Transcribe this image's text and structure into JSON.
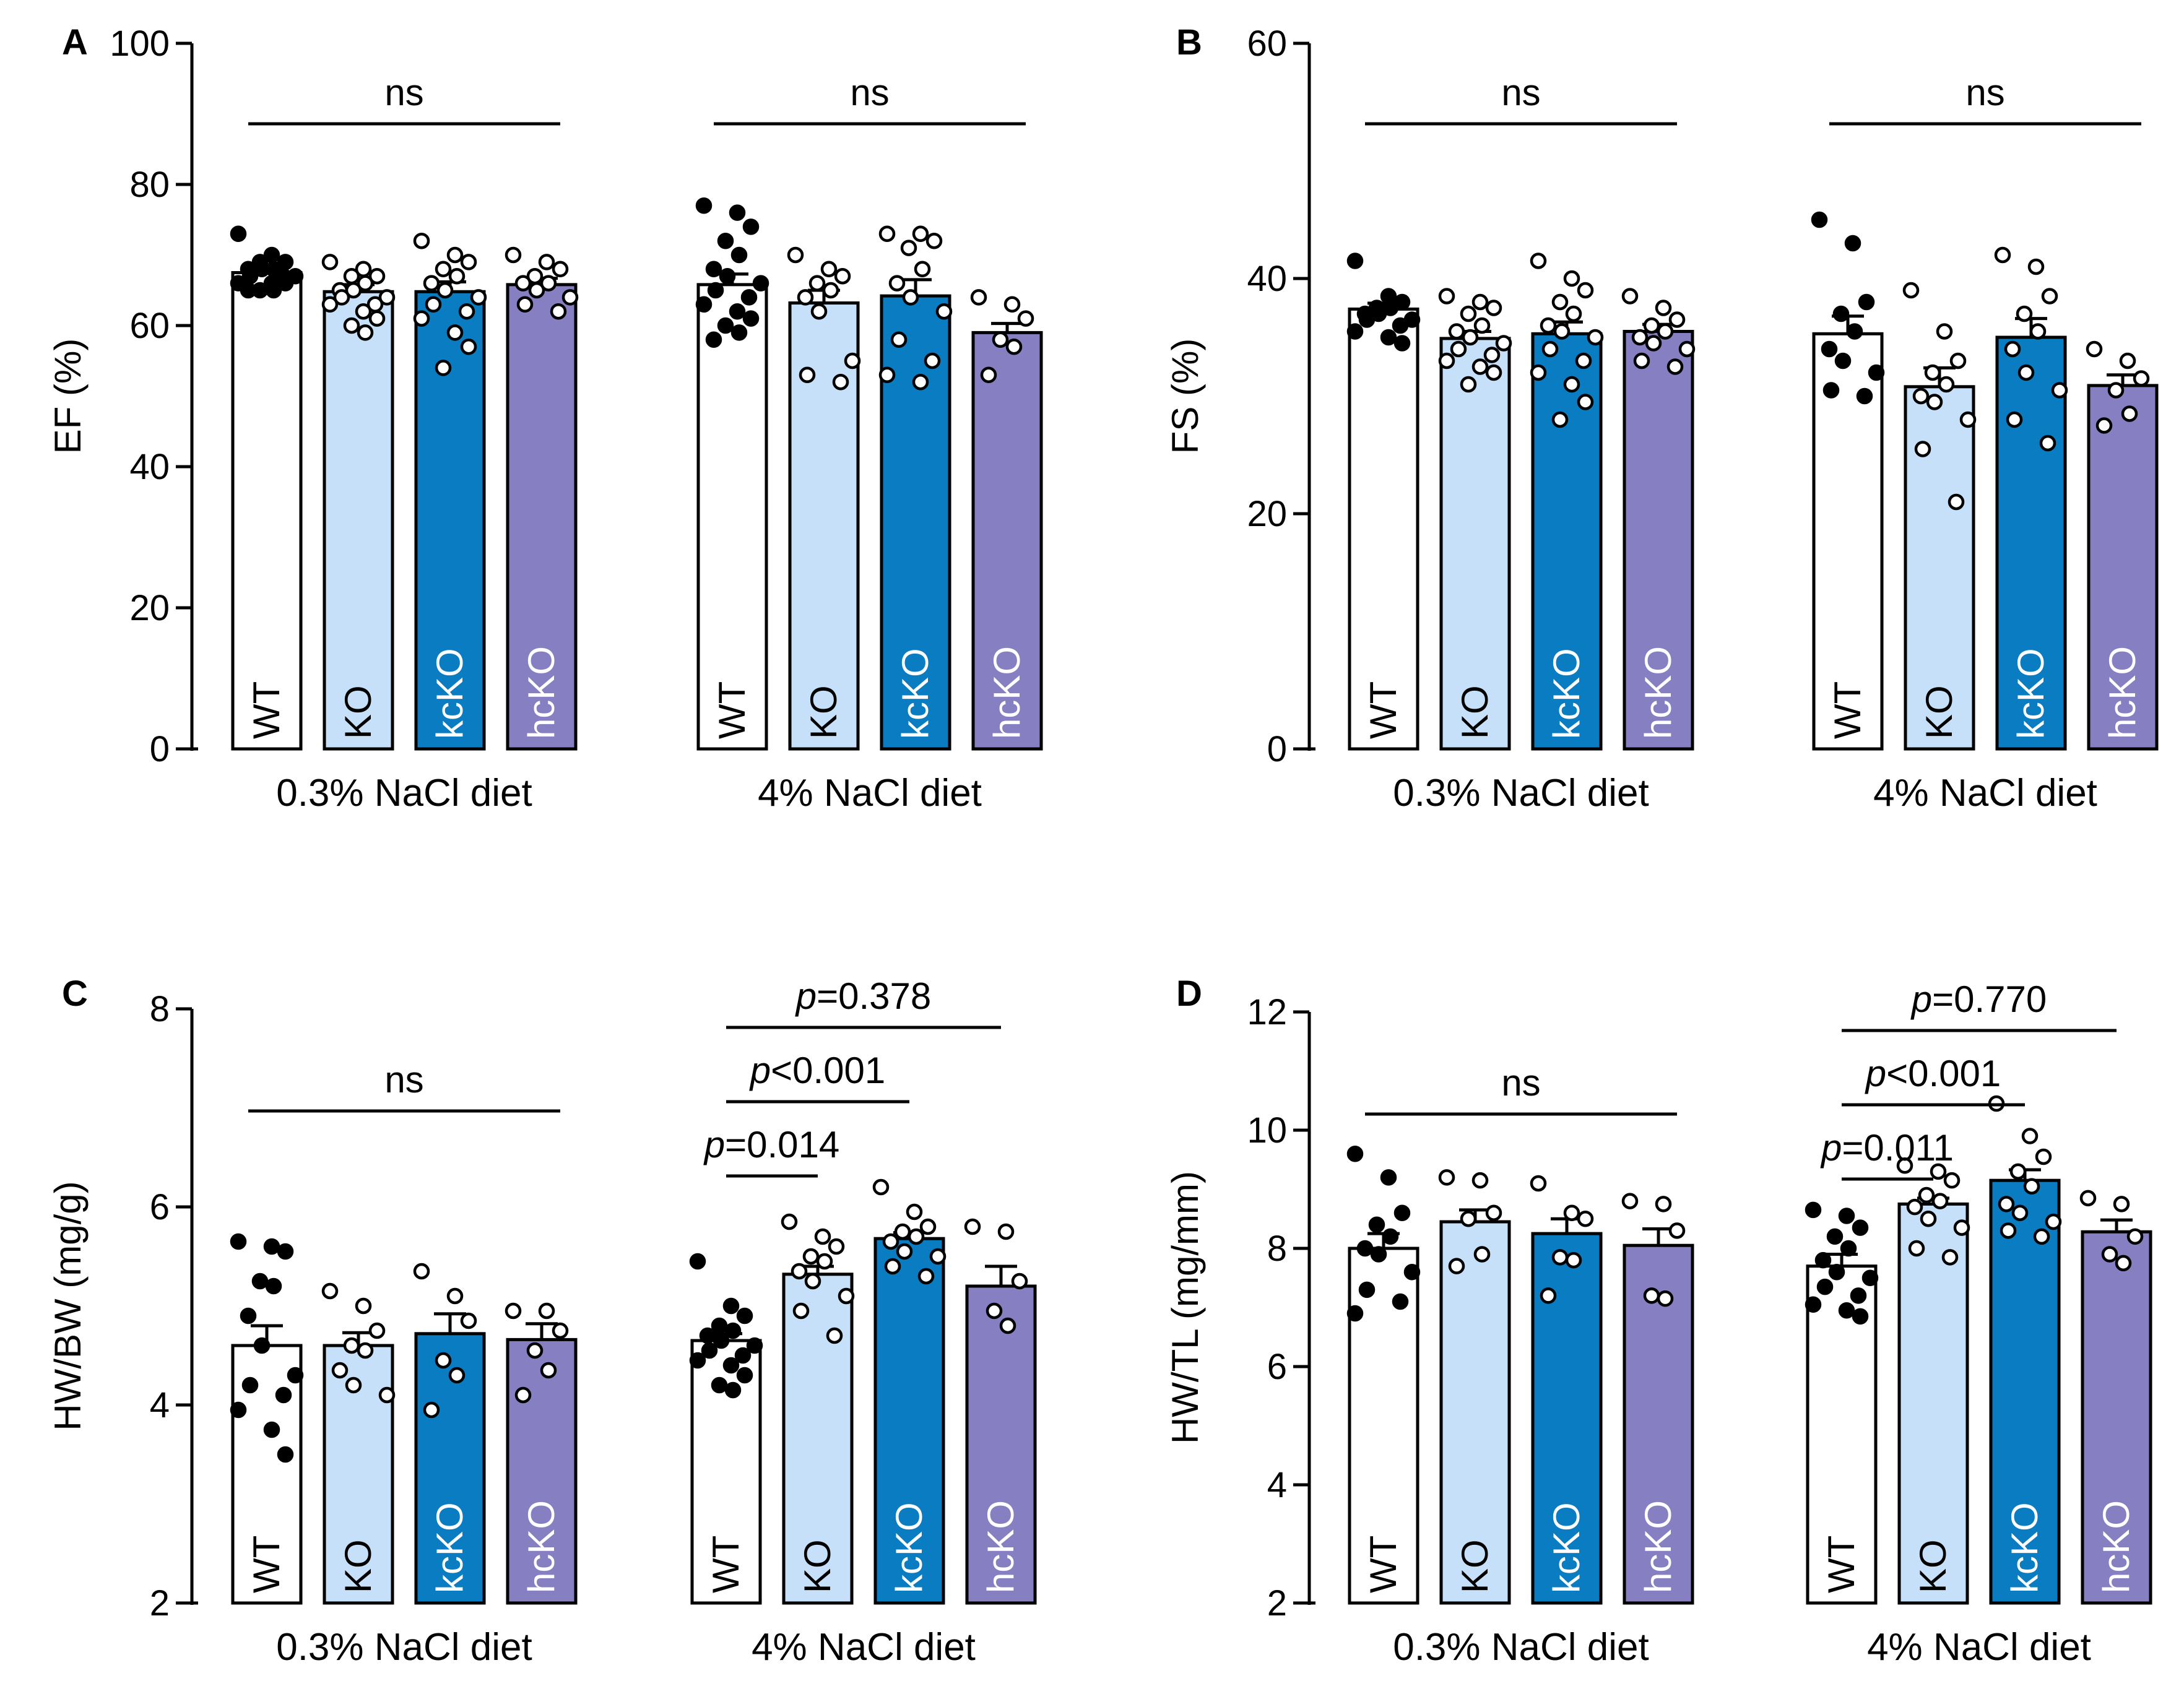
{
  "figure": {
    "group_labels": [
      "0.3% NaCl diet",
      "4% NaCl diet"
    ],
    "genotypes": [
      "WT",
      "KO",
      "kcKO",
      "hcKO"
    ],
    "colors": {
      "WT": "#ffffff",
      "KO": "#c5e0f8",
      "kcKO": "#0a7cc2",
      "hcKO": "#8680c3"
    },
    "label_colors": {
      "WT": "#000000",
      "KO": "#000000",
      "kcKO": "#ffffff",
      "hcKO": "#ffffff"
    },
    "point_fill": {
      "WT": "#000000",
      "KO": "#ffffff",
      "kcKO": "#ffffff",
      "hcKO": "#ffffff"
    }
  },
  "chart_data": [
    {
      "panel_label": "A",
      "type": "bar",
      "ylabel": "EF (%)",
      "ylim": [
        0,
        100
      ],
      "yticks": [
        "0",
        "20",
        "40",
        "60",
        "80",
        "100"
      ],
      "groups": [
        {
          "label": "0.3% NaCl diet",
          "bars": [
            {
              "genotype": "WT",
              "mean": 67.5,
              "sem": 0.8,
              "points": [
                73,
                70,
                69,
                69,
                68,
                68,
                68,
                67,
                67,
                67,
                66,
                66,
                66,
                65,
                65,
                65
              ]
            },
            {
              "genotype": "KO",
              "mean": 64.8,
              "sem": 1.0,
              "points": [
                69,
                68,
                67,
                67,
                66,
                65,
                65,
                64,
                64,
                63,
                63,
                62,
                61,
                60,
                59
              ]
            },
            {
              "genotype": "kcKO",
              "mean": 64.8,
              "sem": 1.4,
              "points": [
                72,
                70,
                69,
                68,
                67,
                66,
                65,
                64,
                63,
                62,
                61,
                59,
                57,
                54
              ]
            },
            {
              "genotype": "hcKO",
              "mean": 65.8,
              "sem": 0.9,
              "points": [
                70,
                69,
                68,
                67,
                66,
                66,
                65,
                64,
                63,
                62
              ]
            }
          ],
          "annotation": {
            "text": "ns",
            "italic_p": false,
            "from": 0,
            "to": 3
          }
        },
        {
          "label": "4% NaCl diet",
          "bars": [
            {
              "genotype": "WT",
              "mean": 65.8,
              "sem": 1.5,
              "points": [
                77,
                76,
                74,
                72,
                70,
                68,
                67,
                66,
                65,
                64,
                63,
                62,
                61,
                60,
                59,
                58
              ]
            },
            {
              "genotype": "KO",
              "mean": 63.2,
              "sem": 1.8,
              "points": [
                70,
                68,
                67,
                66,
                65,
                64,
                62,
                55,
                53,
                52
              ]
            },
            {
              "genotype": "kcKO",
              "mean": 64.2,
              "sem": 2.3,
              "points": [
                73,
                73,
                72,
                71,
                68,
                66,
                64,
                62,
                58,
                55,
                53,
                52
              ]
            },
            {
              "genotype": "hcKO",
              "mean": 59.0,
              "sem": 1.3,
              "points": [
                64,
                63,
                61,
                58,
                57,
                53
              ]
            }
          ],
          "annotation": {
            "text": "ns",
            "italic_p": false,
            "from": 0,
            "to": 3
          }
        }
      ]
    },
    {
      "panel_label": "B",
      "type": "bar",
      "ylabel": "FS (%)",
      "ylim": [
        0,
        60
      ],
      "yticks": [
        "0",
        "20",
        "40",
        "60"
      ],
      "groups": [
        {
          "label": "0.3% NaCl diet",
          "bars": [
            {
              "genotype": "WT",
              "mean": 37.4,
              "sem": 0.5,
              "points": [
                41.5,
                38.5,
                38,
                37.5,
                37.5,
                37,
                37,
                36.5,
                36.5,
                36,
                35.5,
                35,
                34.5
              ]
            },
            {
              "genotype": "KO",
              "mean": 34.9,
              "sem": 0.6,
              "points": [
                38.5,
                38,
                37.5,
                37,
                36,
                35.5,
                35,
                34.5,
                34,
                33.5,
                33,
                32.5,
                32,
                31
              ]
            },
            {
              "genotype": "kcKO",
              "mean": 35.3,
              "sem": 1.0,
              "points": [
                41.5,
                40,
                39,
                38,
                37,
                36,
                35.5,
                35,
                34,
                33,
                32,
                31,
                29.5,
                28
              ]
            },
            {
              "genotype": "hcKO",
              "mean": 35.5,
              "sem": 0.6,
              "points": [
                38.5,
                37.5,
                36.5,
                36,
                35.5,
                35,
                34.5,
                34,
                33,
                32.5
              ]
            }
          ],
          "annotation": {
            "text": "ns",
            "italic_p": false,
            "from": 0,
            "to": 3
          }
        },
        {
          "label": "4% NaCl diet",
          "bars": [
            {
              "genotype": "WT",
              "mean": 35.3,
              "sem": 1.5,
              "points": [
                45,
                43,
                38,
                37,
                35.5,
                34,
                33,
                32,
                30.5,
                30
              ]
            },
            {
              "genotype": "KO",
              "mean": 30.8,
              "sem": 1.6,
              "points": [
                39,
                35.5,
                33,
                32,
                31,
                30,
                29.5,
                28,
                25.5,
                21
              ]
            },
            {
              "genotype": "kcKO",
              "mean": 35.0,
              "sem": 1.6,
              "points": [
                42,
                41,
                38.5,
                37,
                35.5,
                34,
                32,
                30.5,
                28,
                26
              ]
            },
            {
              "genotype": "hcKO",
              "mean": 30.9,
              "sem": 0.9,
              "points": [
                34,
                33,
                31.5,
                30.5,
                28.5,
                27.5
              ]
            }
          ],
          "annotation": {
            "text": "ns",
            "italic_p": false,
            "from": 0,
            "to": 3
          }
        }
      ]
    },
    {
      "panel_label": "C",
      "type": "bar",
      "ylabel": "HW/BW (mg/g)",
      "ylim": [
        2,
        8
      ],
      "yticks": [
        "2",
        "4",
        "6",
        "8"
      ],
      "groups": [
        {
          "label": "0.3% NaCl diet",
          "bars": [
            {
              "genotype": "WT",
              "mean": 4.6,
              "sem": 0.2,
              "points": [
                5.65,
                5.6,
                5.55,
                5.25,
                5.2,
                4.9,
                4.6,
                4.3,
                4.2,
                4.1,
                3.95,
                3.75,
                3.5
              ]
            },
            {
              "genotype": "KO",
              "mean": 4.6,
              "sem": 0.13,
              "points": [
                5.15,
                5.0,
                4.75,
                4.6,
                4.55,
                4.35,
                4.2,
                4.1
              ]
            },
            {
              "genotype": "kcKO",
              "mean": 4.72,
              "sem": 0.2,
              "points": [
                5.35,
                5.1,
                4.85,
                4.45,
                4.3,
                3.95
              ]
            },
            {
              "genotype": "hcKO",
              "mean": 4.66,
              "sem": 0.16,
              "points": [
                4.95,
                4.95,
                4.75,
                4.55,
                4.35,
                4.1
              ]
            }
          ],
          "annotation": {
            "text": "ns",
            "italic_p": false,
            "from": 0,
            "to": 3
          }
        },
        {
          "label": "4% NaCl diet",
          "bars": [
            {
              "genotype": "WT",
              "mean": 4.65,
              "sem": 0.07,
              "points": [
                5.45,
                5.0,
                4.9,
                4.8,
                4.75,
                4.7,
                4.65,
                4.6,
                4.55,
                4.5,
                4.45,
                4.4,
                4.3,
                4.2,
                4.15
              ]
            },
            {
              "genotype": "KO",
              "mean": 5.32,
              "sem": 0.08,
              "points": [
                5.85,
                5.7,
                5.6,
                5.5,
                5.45,
                5.35,
                5.25,
                5.1,
                4.95,
                4.7
              ]
            },
            {
              "genotype": "kcKO",
              "mean": 5.68,
              "sem": 0.06,
              "points": [
                6.2,
                5.95,
                5.8,
                5.75,
                5.7,
                5.65,
                5.55,
                5.5,
                5.4,
                5.3
              ]
            },
            {
              "genotype": "hcKO",
              "mean": 5.2,
              "sem": 0.2,
              "points": [
                5.8,
                5.75,
                5.25,
                4.95,
                4.8
              ]
            }
          ],
          "annotations": [
            {
              "text": "=0.014",
              "italic_p": true,
              "from": 0,
              "to": 1
            },
            {
              "text": "<0.001",
              "italic_p": true,
              "from": 0,
              "to": 2
            },
            {
              "text": "=0.378",
              "italic_p": true,
              "from": 0,
              "to": 3
            }
          ]
        }
      ]
    },
    {
      "panel_label": "D",
      "type": "bar",
      "ylabel": "HW/TL (mg/mm)",
      "ylim": [
        2,
        12
      ],
      "yticks": [
        "2",
        "4",
        "6",
        "8",
        "10",
        "12"
      ],
      "groups": [
        {
          "label": "0.3% NaCl diet",
          "bars": [
            {
              "genotype": "WT",
              "mean": 8.0,
              "sem": 0.25,
              "points": [
                9.6,
                9.2,
                8.6,
                8.4,
                8.2,
                8.0,
                7.9,
                7.6,
                7.3,
                7.1,
                6.9
              ]
            },
            {
              "genotype": "KO",
              "mean": 8.45,
              "sem": 0.2,
              "points": [
                9.2,
                9.15,
                8.6,
                8.5,
                7.9,
                7.7
              ]
            },
            {
              "genotype": "kcKO",
              "mean": 8.25,
              "sem": 0.25,
              "points": [
                9.1,
                8.6,
                8.5,
                7.85,
                7.8,
                7.2
              ]
            },
            {
              "genotype": "hcKO",
              "mean": 8.05,
              "sem": 0.28,
              "points": [
                8.8,
                8.75,
                8.3,
                7.2,
                7.15
              ]
            }
          ],
          "annotation": {
            "text": "ns",
            "italic_p": false,
            "from": 0,
            "to": 3
          }
        },
        {
          "label": "4% NaCl diet",
          "bars": [
            {
              "genotype": "WT",
              "mean": 7.7,
              "sem": 0.2,
              "points": [
                8.65,
                8.55,
                8.35,
                8.2,
                8.0,
                7.8,
                7.6,
                7.5,
                7.35,
                7.2,
                7.05,
                6.95,
                6.85
              ]
            },
            {
              "genotype": "KO",
              "mean": 8.75,
              "sem": 0.1,
              "points": [
                9.4,
                9.3,
                9.15,
                8.9,
                8.8,
                8.7,
                8.5,
                8.35,
                8.0,
                7.85
              ]
            },
            {
              "genotype": "kcKO",
              "mean": 9.15,
              "sem": 0.18,
              "points": [
                10.45,
                9.9,
                9.55,
                9.3,
                9.05,
                8.75,
                8.6,
                8.45,
                8.3,
                8.2
              ]
            },
            {
              "genotype": "hcKO",
              "mean": 8.28,
              "sem": 0.2,
              "points": [
                8.85,
                8.75,
                8.2,
                7.9,
                7.75
              ]
            }
          ],
          "annotations": [
            {
              "text": "=0.011",
              "italic_p": true,
              "from": 0,
              "to": 1
            },
            {
              "text": "<0.001",
              "italic_p": true,
              "from": 0,
              "to": 2
            },
            {
              "text": "=0.770",
              "italic_p": true,
              "from": 0,
              "to": 3
            }
          ]
        }
      ]
    }
  ]
}
